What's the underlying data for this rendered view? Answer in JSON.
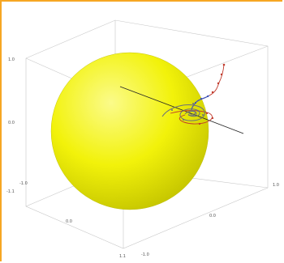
{
  "colors": {
    "frame_accent": "#f6a623",
    "box_edges": "#c8c8c8",
    "sphere_fill": "#f2f20a",
    "sphere_shadow": "#cdcd00",
    "path_red": "#c0392b",
    "path_blue": "#3f51b5",
    "path_gray": "#6b6f7a",
    "axis_line": "#222222"
  },
  "axes": {
    "z_top": "1.0",
    "z_mid": "0.0",
    "z_bottom": "-1.0",
    "x_left": "-1.1",
    "x_mid": "0.0",
    "x_right": "1.1",
    "y_front": "-1.0",
    "y_mid": "0.0",
    "y_back": "1.0"
  },
  "chart_data": {
    "type": "scatter",
    "style": "3d",
    "grid": false,
    "legend": "none"
  }
}
